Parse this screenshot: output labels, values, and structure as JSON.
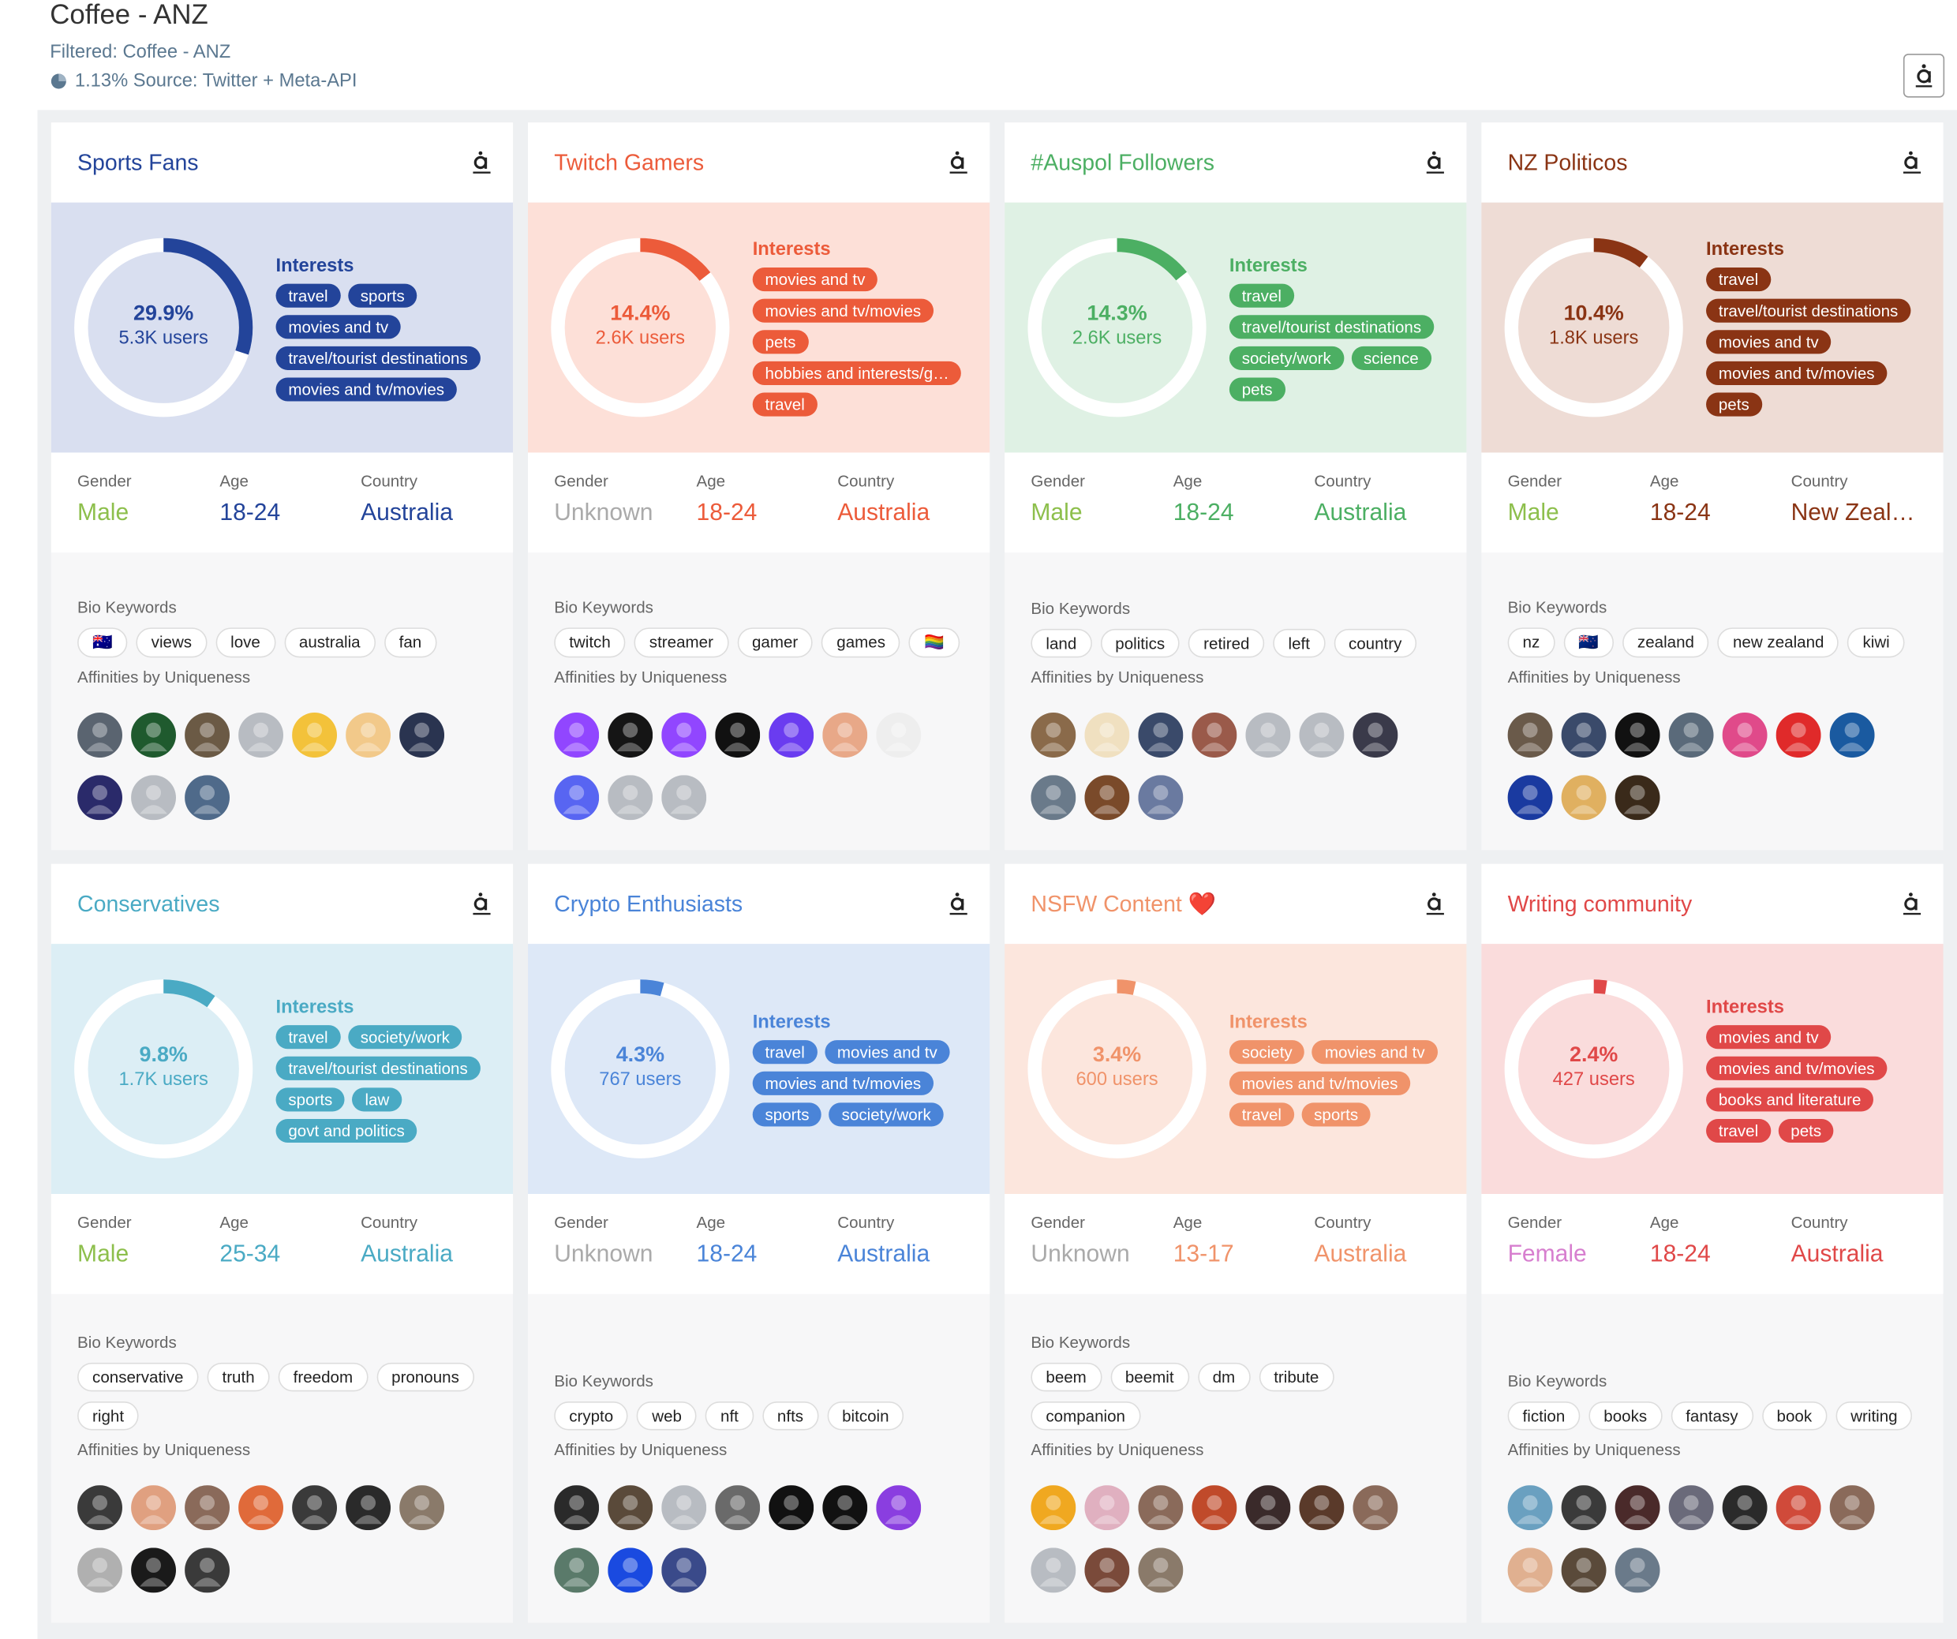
{
  "header": {
    "title": "Coffee - ANZ",
    "filter": "Filtered: Coffee - ANZ",
    "source": "1.13% Source: Twitter + Meta-API"
  },
  "labels": {
    "interests": "Interests",
    "gender": "Gender",
    "age": "Age",
    "country": "Country",
    "bio": "Bio Keywords",
    "affinities": "Affinities by Uniqueness"
  },
  "cards": [
    {
      "title": "Sports Fans",
      "color": "#23449a",
      "panel": "#d9dff0",
      "share": {
        "value": 29.9,
        "label": "29.9%"
      },
      "users": "5.3K users",
      "interests": [
        "travel",
        "sports",
        "movies and tv",
        "travel/tourist destinations",
        "movies and tv/movies"
      ],
      "gender": "Male",
      "gender_color": "#8dbf4c",
      "age": "18-24",
      "country": "Australia",
      "keywords": [
        "🇦🇺",
        "views",
        "love",
        "australia",
        "fan"
      ],
      "affinities": [
        "#5a6470",
        "#1f5a2e",
        "#6b5a45",
        "#b8bcc2",
        "#f3c23a",
        "#f2c98a",
        "#2a3450",
        "#2a2a6a",
        "#b8bcc2",
        "#4f6a8a"
      ]
    },
    {
      "title": "Twitch Gamers",
      "color": "#ec5b3a",
      "panel": "#fde0d8",
      "share": {
        "value": 14.4,
        "label": "14.4%"
      },
      "users": "2.6K users",
      "interests": [
        "movies and tv",
        "movies and tv/movies",
        "pets",
        "hobbies and interests/g…",
        "travel"
      ],
      "gender": "Unknown",
      "gender_color": "#aaaaaa",
      "age": "18-24",
      "country": "Australia",
      "keywords": [
        "twitch",
        "streamer",
        "gamer",
        "games",
        "🏳️‍🌈"
      ],
      "affinities": [
        "#9146ff",
        "#151515",
        "#9146ff",
        "#111111",
        "#6a3cf0",
        "#e8a888",
        "#eeeeee",
        "#5865f2",
        "#b8bcc2",
        "#b8bcc2"
      ]
    },
    {
      "title": "#Auspol Followers",
      "color": "#4caf63",
      "panel": "#dff1e4",
      "share": {
        "value": 14.3,
        "label": "14.3%"
      },
      "users": "2.6K users",
      "interests": [
        "travel",
        "travel/tourist destinations",
        "society/work",
        "science",
        "pets"
      ],
      "gender": "Male",
      "gender_color": "#8dbf4c",
      "age": "18-24",
      "country": "Australia",
      "keywords": [
        "land",
        "politics",
        "retired",
        "left",
        "country"
      ],
      "affinities": [
        "#8a6a4a",
        "#f0e0c0",
        "#3a4a6a",
        "#9a5a4a",
        "#b8bcc2",
        "#b8bcc2",
        "#3a3a4a",
        "#6a7a8a",
        "#7a4a2a",
        "#6a7aa0"
      ]
    },
    {
      "title": "NZ Politicos",
      "color": "#8a3414",
      "panel": "#eedcd5",
      "share": {
        "value": 10.4,
        "label": "10.4%"
      },
      "users": "1.8K users",
      "interests": [
        "travel",
        "travel/tourist destinations",
        "movies and tv",
        "movies and tv/movies",
        "pets"
      ],
      "gender": "Male",
      "gender_color": "#8dbf4c",
      "age": "18-24",
      "country": "New Zeal…",
      "keywords": [
        "nz",
        "🇳🇿",
        "zealand",
        "new zealand",
        "kiwi"
      ],
      "affinities": [
        "#6a5a4a",
        "#3a4a6a",
        "#111111",
        "#5a6a7a",
        "#e04a8a",
        "#e02a2a",
        "#1a5aa0",
        "#1a3aa0",
        "#e0b060",
        "#3a2a1a"
      ]
    },
    {
      "title": "Conservatives",
      "color": "#4aaac4",
      "panel": "#dceef5",
      "share": {
        "value": 9.8,
        "label": "9.8%"
      },
      "users": "1.7K users",
      "interests": [
        "travel",
        "society/work",
        "travel/tourist destinations",
        "sports",
        "law",
        "govt and politics"
      ],
      "gender": "Male",
      "gender_color": "#8dbf4c",
      "age": "25-34",
      "country": "Australia",
      "keywords": [
        "conservative",
        "truth",
        "freedom",
        "pronouns",
        "right"
      ],
      "affinities": [
        "#3a3a3a",
        "#e0a080",
        "#8a6a5a",
        "#e06a3a",
        "#3a3a3a",
        "#2a2a2a",
        "#8a7a6a",
        "#b0b0b0",
        "#1a1a1a",
        "#3a3a3a"
      ]
    },
    {
      "title": "Crypto Enthusiasts",
      "color": "#4a84d8",
      "panel": "#dde8f7",
      "share": {
        "value": 4.3,
        "label": "4.3%"
      },
      "users": "767 users",
      "interests": [
        "travel",
        "movies and tv",
        "movies and tv/movies",
        "sports",
        "society/work"
      ],
      "gender": "Unknown",
      "gender_color": "#aaaaaa",
      "age": "18-24",
      "country": "Australia",
      "keywords": [
        "crypto",
        "web",
        "nft",
        "nfts",
        "bitcoin"
      ],
      "affinities": [
        "#2a2a2a",
        "#5a4a3a",
        "#b8bcc2",
        "#6a6a6a",
        "#111111",
        "#111111",
        "#8a3ee0",
        "#5a7a6a",
        "#1a4ae0",
        "#3a4a8a"
      ]
    },
    {
      "title": "NSFW Content ❤️",
      "color": "#f0936a",
      "panel": "#fce6dd",
      "share": {
        "value": 3.4,
        "label": "3.4%"
      },
      "users": "600 users",
      "interests": [
        "society",
        "movies and tv",
        "movies and tv/movies",
        "travel",
        "sports"
      ],
      "gender": "Unknown",
      "gender_color": "#aaaaaa",
      "age": "13-17",
      "country": "Australia",
      "keywords": [
        "beem",
        "beemit",
        "dm",
        "tribute",
        "companion"
      ],
      "affinities": [
        "#f0a820",
        "#e0b0c0",
        "#8a6a5a",
        "#c04a2a",
        "#3a2a2a",
        "#5a3a2a",
        "#8a6a5a",
        "#b8bcc2",
        "#7a4a3a",
        "#8a7a6a"
      ]
    },
    {
      "title": "Writing community",
      "color": "#e04848",
      "panel": "#fadcdc",
      "share": {
        "value": 2.4,
        "label": "2.4%"
      },
      "users": "427 users",
      "interests": [
        "movies and tv",
        "movies and tv/movies",
        "books and literature",
        "travel",
        "pets"
      ],
      "gender": "Female",
      "gender_color": "#d77fcf",
      "age": "18-24",
      "country": "Australia",
      "keywords": [
        "fiction",
        "books",
        "fantasy",
        "book",
        "writing"
      ],
      "affinities": [
        "#6aa0c0",
        "#3a3a3a",
        "#4a2a2a",
        "#6a6a7a",
        "#2a2a2a",
        "#d04a3a",
        "#8a6a5a",
        "#e0b090",
        "#5a4a3a",
        "#6a7a8a"
      ]
    }
  ]
}
